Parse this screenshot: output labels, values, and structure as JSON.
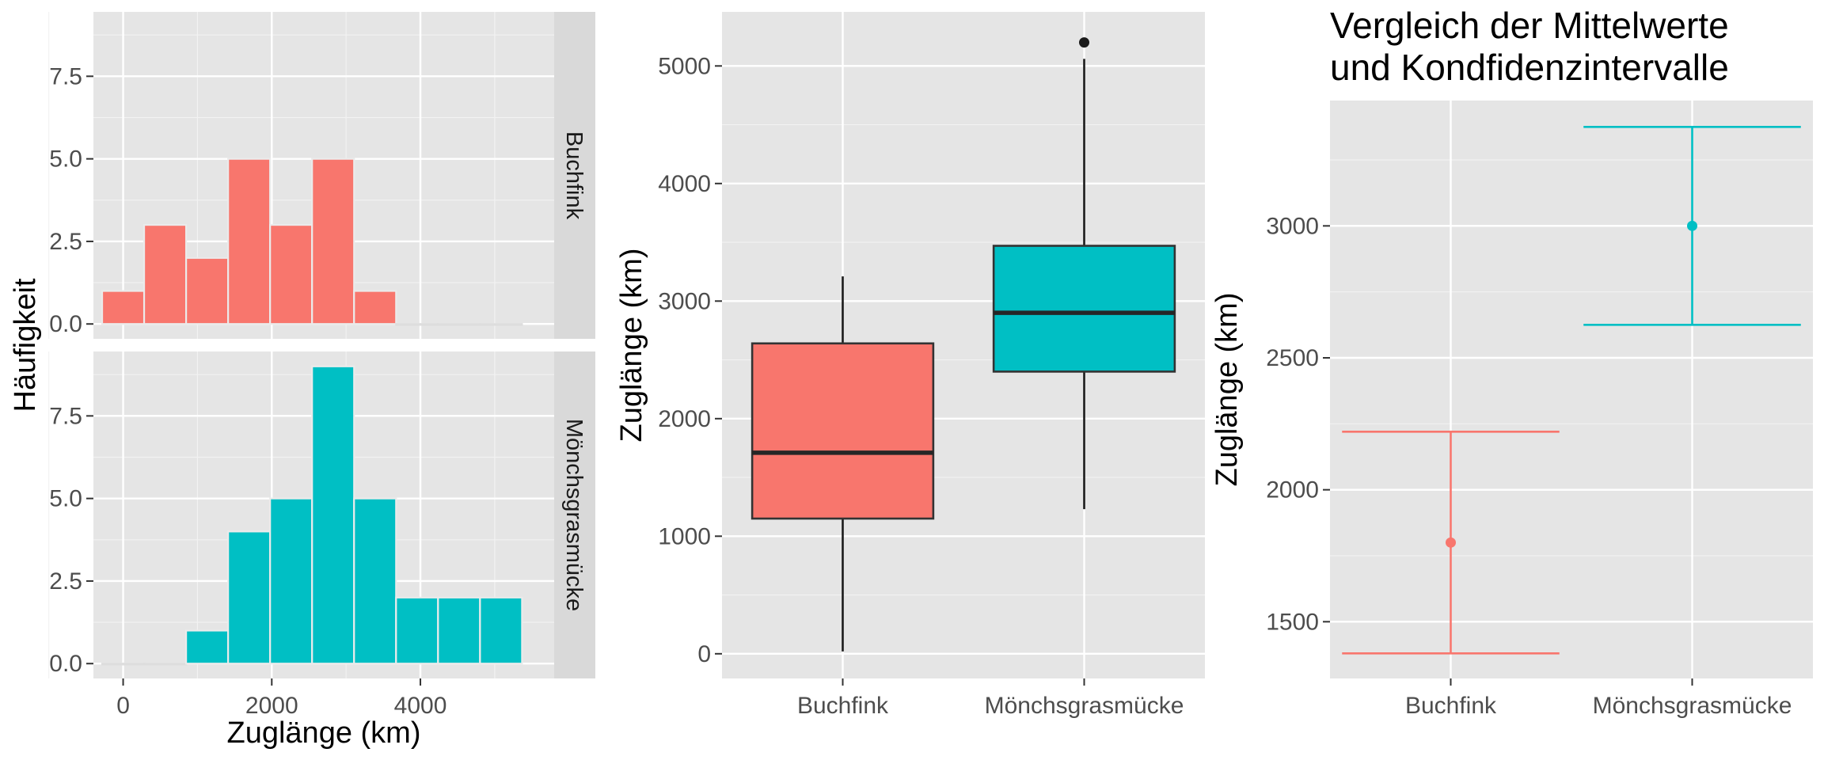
{
  "colors": {
    "Buchfink": "#F8766D",
    "Mönchsgrasmücke": "#00BFC4",
    "panel": "#E5E5E5",
    "strip": "#D9D9D9"
  },
  "chart_data": [
    {
      "type": "bar",
      "subtype": "faceted-histogram",
      "xlabel": "Zuglänge (km)",
      "ylabel": "Häufigkeit",
      "x_ticks": [
        0,
        2000,
        4000
      ],
      "x_tick_labels": [
        "0",
        "2000",
        "4000"
      ],
      "xlim": [
        -400,
        5800
      ],
      "y_ticks": [
        0,
        2.5,
        5,
        7.5
      ],
      "y_tick_labels": [
        "0.0",
        "2.5",
        "5.0",
        "7.5"
      ],
      "ylim": [
        -0.45,
        9.45
      ],
      "bin_width": 565,
      "bin_centers": [
        0,
        565,
        1130,
        1695,
        2260,
        2825,
        3390,
        3955,
        4520,
        5085
      ],
      "series": [
        {
          "name": "Buchfink",
          "values": [
            1,
            3,
            2,
            5,
            3,
            5,
            1,
            0,
            0,
            0
          ]
        },
        {
          "name": "Mönchsgrasmücke",
          "values": [
            0,
            0,
            1,
            4,
            5,
            9,
            5,
            2,
            2,
            2
          ]
        }
      ],
      "grid": true,
      "legend": "none"
    },
    {
      "type": "boxplot",
      "categories": [
        "Buchfink",
        "Mönchsgrasmücke"
      ],
      "ylabel": "Zuglänge (km)",
      "xlabel": "",
      "y_ticks": [
        0,
        1000,
        2000,
        3000,
        4000,
        5000
      ],
      "y_tick_labels": [
        "0",
        "1000",
        "2000",
        "3000",
        "4000",
        "5000"
      ],
      "ylim": [
        -210,
        5460
      ],
      "boxes": [
        {
          "category": "Buchfink",
          "whisker_low": 20,
          "q1": 1150,
          "median": 1710,
          "q3": 2640,
          "whisker_high": 3210,
          "outliers": []
        },
        {
          "category": "Mönchsgrasmücke",
          "whisker_low": 1230,
          "q1": 2400,
          "median": 2900,
          "q3": 3470,
          "whisker_high": 5060,
          "outliers": [
            5200
          ]
        }
      ],
      "grid": true,
      "legend": "none"
    },
    {
      "type": "errorbar",
      "title": "Vergleich der Mittelwerte\nund Kondfidenzintervalle",
      "title_lines": [
        "Vergleich der Mittelwerte",
        "und Kondfidenzintervalle"
      ],
      "categories": [
        "Buchfink",
        "Mönchsgrasmücke"
      ],
      "ylabel": "Zuglänge (km)",
      "xlabel": "",
      "y_ticks": [
        1500,
        2000,
        2500,
        3000
      ],
      "y_tick_labels": [
        "1500",
        "2000",
        "2500",
        "3000"
      ],
      "ylim": [
        1285,
        3475
      ],
      "points": [
        {
          "category": "Buchfink",
          "mean": 1800,
          "lower": 1380,
          "upper": 2220
        },
        {
          "category": "Mönchsgrasmücke",
          "mean": 3000,
          "lower": 2625,
          "upper": 3375
        }
      ],
      "grid": true,
      "legend": "none"
    }
  ]
}
